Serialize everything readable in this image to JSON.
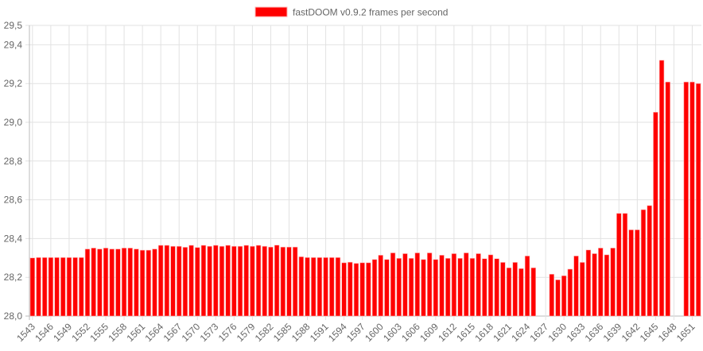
{
  "chart_data": {
    "type": "bar",
    "title": "",
    "xlabel": "",
    "ylabel": "",
    "ylim": [
      28.0,
      29.5
    ],
    "yticks": [
      "28,0",
      "28,2",
      "28,4",
      "28,6",
      "28,8",
      "29,0",
      "29,2",
      "29,4",
      "29,5"
    ],
    "ytick_values": [
      28.0,
      28.2,
      28.4,
      28.6,
      28.8,
      29.0,
      29.2,
      29.4,
      29.5
    ],
    "grid": true,
    "legend_position": "top",
    "bar_color": "#ff0000",
    "series": [
      {
        "name": "fastDOOM v0.9.2 frames per second"
      }
    ],
    "x_start": 1543,
    "x_end": 1652,
    "x_label_every": 3,
    "values": {
      "1543": 28.3,
      "1544": 28.302,
      "1545": 28.302,
      "1546": 28.302,
      "1547": 28.302,
      "1548": 28.302,
      "1549": 28.302,
      "1550": 28.302,
      "1551": 28.302,
      "1552": 28.346,
      "1553": 28.351,
      "1554": 28.346,
      "1555": 28.351,
      "1556": 28.346,
      "1557": 28.346,
      "1558": 28.351,
      "1559": 28.351,
      "1560": 28.346,
      "1561": 28.34,
      "1562": 28.34,
      "1563": 28.346,
      "1564": 28.365,
      "1565": 28.365,
      "1566": 28.36,
      "1567": 28.36,
      "1568": 28.355,
      "1569": 28.365,
      "1570": 28.354,
      "1571": 28.365,
      "1572": 28.36,
      "1573": 28.365,
      "1574": 28.36,
      "1575": 28.365,
      "1576": 28.36,
      "1577": 28.36,
      "1578": 28.365,
      "1579": 28.36,
      "1580": 28.365,
      "1581": 28.36,
      "1582": 28.356,
      "1583": 28.366,
      "1584": 28.356,
      "1585": 28.356,
      "1586": 28.356,
      "1587": 28.306,
      "1588": 28.302,
      "1589": 28.302,
      "1590": 28.302,
      "1591": 28.302,
      "1592": 28.302,
      "1593": 28.302,
      "1594": 28.275,
      "1595": 28.278,
      "1596": 28.272,
      "1597": 28.275,
      "1598": 28.275,
      "1599": 28.292,
      "1600": 28.314,
      "1601": 28.292,
      "1602": 28.326,
      "1603": 28.298,
      "1604": 28.322,
      "1605": 28.298,
      "1606": 28.326,
      "1607": 28.292,
      "1608": 28.326,
      "1609": 28.292,
      "1610": 28.314,
      "1611": 28.298,
      "1612": 28.322,
      "1613": 28.298,
      "1614": 28.326,
      "1615": 28.298,
      "1616": 28.322,
      "1617": 28.296,
      "1618": 28.316,
      "1619": 28.296,
      "1620": 28.277,
      "1621": 28.249,
      "1622": 28.277,
      "1623": 28.245,
      "1624": 28.31,
      "1625": 28.249,
      "1628": 28.216,
      "1629": 28.187,
      "1630": 28.208,
      "1631": 28.242,
      "1632": 28.31,
      "1633": 28.277,
      "1634": 28.341,
      "1635": 28.322,
      "1636": 28.351,
      "1637": 28.316,
      "1638": 28.351,
      "1639": 28.53,
      "1640": 28.53,
      "1641": 28.445,
      "1642": 28.445,
      "1643": 28.549,
      "1644": 28.57,
      "1645": 29.052,
      "1646": 29.32,
      "1647": 29.208,
      "1650": 29.208,
      "1651": 29.208,
      "1652": 29.2
    }
  }
}
